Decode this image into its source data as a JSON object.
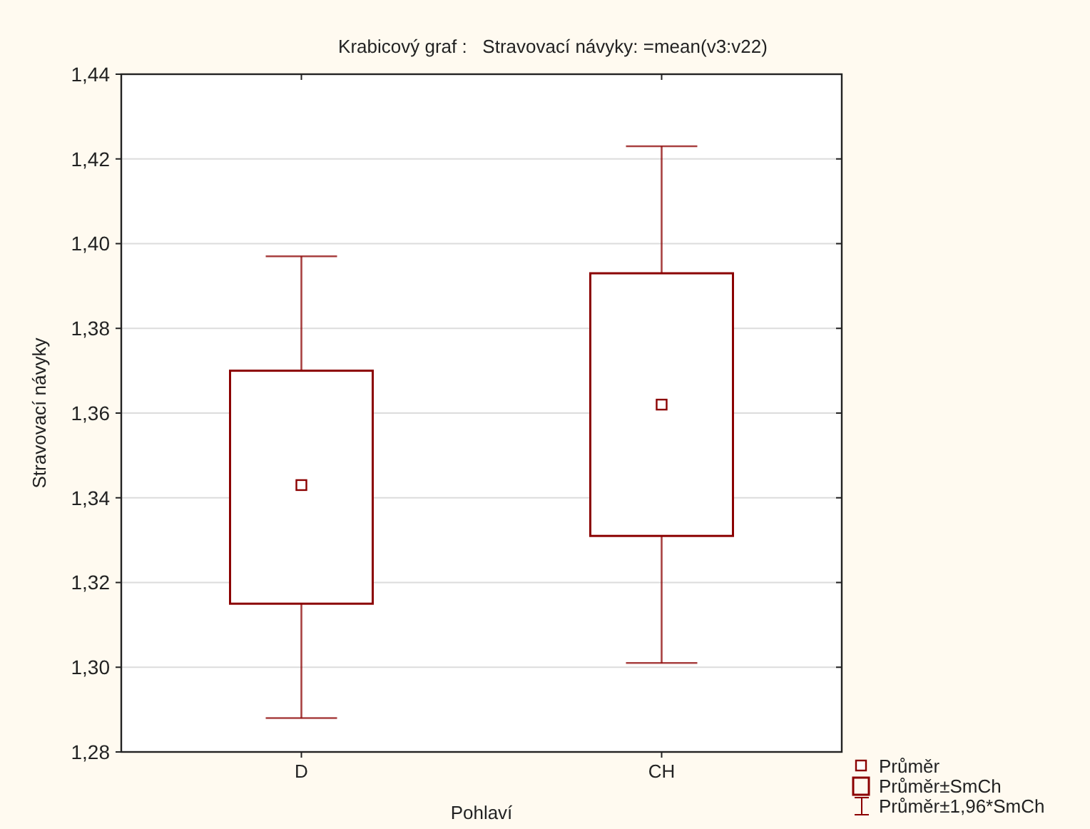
{
  "chart_data": {
    "type": "box",
    "title": "Krabicový graf :   Stravovací návyky: =mean(v3:v22)",
    "xlabel": "Pohlaví",
    "ylabel": "Stravovací návyky",
    "categories": [
      "D",
      "CH"
    ],
    "series": [
      {
        "color": "#8b0000",
        "boxes": [
          {
            "low": 1.288,
            "q1": 1.315,
            "q3": 1.37,
            "high": 1.397,
            "mean": 1.343
          },
          {
            "low": 1.301,
            "q1": 1.331,
            "q3": 1.393,
            "high": 1.423,
            "mean": 1.362
          }
        ]
      }
    ],
    "ylim": [
      1.28,
      1.44
    ],
    "yticks": [
      {
        "value": 1.28,
        "label": "1,28"
      },
      {
        "value": 1.3,
        "label": "1,30"
      },
      {
        "value": 1.32,
        "label": "1,32"
      },
      {
        "value": 1.34,
        "label": "1,34"
      },
      {
        "value": 1.36,
        "label": "1,36"
      },
      {
        "value": 1.38,
        "label": "1,38"
      },
      {
        "value": 1.4,
        "label": "1,40"
      },
      {
        "value": 1.42,
        "label": "1,42"
      },
      {
        "value": 1.44,
        "label": "1,44"
      }
    ],
    "grid": "y",
    "annotations": [
      "Průměr",
      "Průměr±SmCh",
      "Průměr±1,96*SmCh"
    ]
  }
}
